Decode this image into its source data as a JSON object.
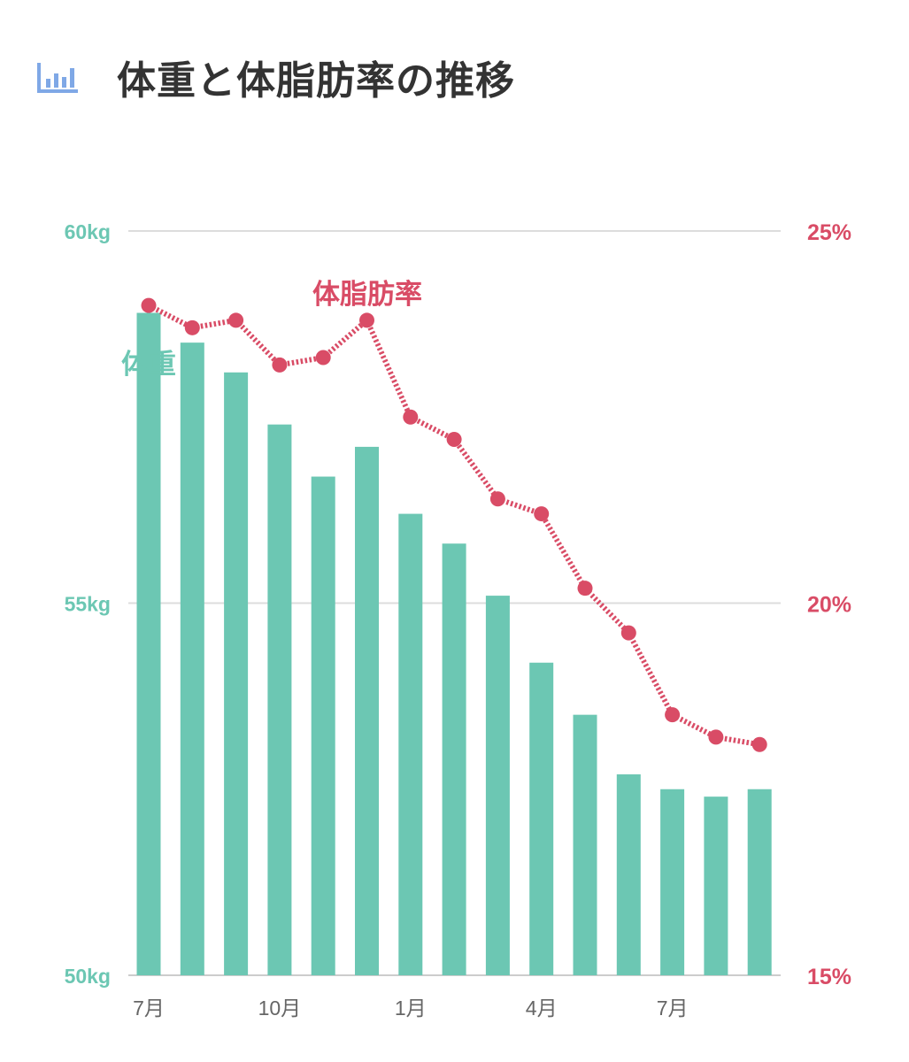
{
  "header": {
    "title": "体重と体脂肪率の推移",
    "icon": "bar-chart-icon"
  },
  "colors": {
    "weight": "#6cc7b3",
    "fat": "#d94c66",
    "grid": "#dddddd",
    "icon": "#7fa8e6",
    "title": "#333333",
    "tick": "#666666"
  },
  "chart_data": {
    "type": "bar",
    "categories": [
      "7月",
      "",
      "",
      "10月",
      "",
      "",
      "1月",
      "",
      "",
      "4月",
      "",
      "",
      "7月",
      "",
      ""
    ],
    "x_tick_labels": [
      "7月",
      "10月",
      "1月",
      "4月",
      "7月"
    ],
    "series": [
      {
        "name": "体重",
        "type": "bar",
        "axis": "left",
        "values": [
          58.9,
          58.5,
          58.1,
          57.4,
          56.7,
          57.1,
          56.2,
          55.8,
          55.1,
          54.2,
          53.5,
          52.7,
          52.5,
          52.4,
          52.5
        ]
      },
      {
        "name": "体脂肪率",
        "type": "line",
        "style": "dotted",
        "axis": "right",
        "values": [
          24.0,
          23.7,
          23.8,
          23.2,
          23.3,
          23.8,
          22.5,
          22.2,
          21.4,
          21.2,
          20.2,
          19.6,
          18.5,
          18.2,
          18.1
        ]
      }
    ],
    "y_left": {
      "ticks": [
        "60kg",
        "55kg",
        "50kg"
      ],
      "range": [
        50,
        60
      ]
    },
    "y_right": {
      "ticks": [
        "25%",
        "20%",
        "15%"
      ],
      "range": [
        15,
        25
      ]
    },
    "grid": true
  }
}
